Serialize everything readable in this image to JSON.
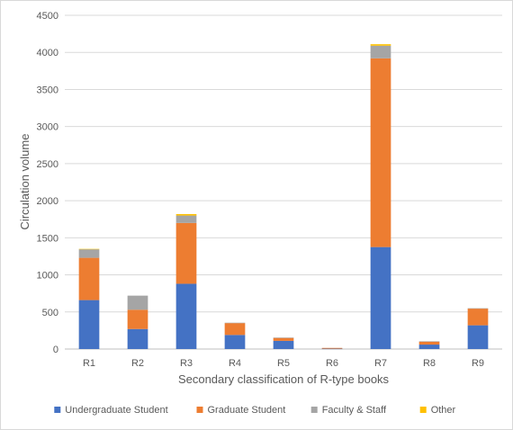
{
  "chart_data": {
    "type": "bar",
    "stacked": true,
    "title": "",
    "xlabel": "Secondary classification of R-type books",
    "ylabel": "Circulation volume",
    "ylim": [
      0,
      4500
    ],
    "yticks": [
      0,
      500,
      1000,
      1500,
      2000,
      2500,
      3000,
      3500,
      4000,
      4500
    ],
    "grid": true,
    "legend_position": "bottom",
    "categories": [
      "R1",
      "R2",
      "R3",
      "R4",
      "R5",
      "R6",
      "R7",
      "R8",
      "R9"
    ],
    "series": [
      {
        "name": "Undergraduate Student",
        "color": "#4472c4",
        "values": [
          660,
          270,
          880,
          190,
          110,
          5,
          1375,
          60,
          320
        ]
      },
      {
        "name": "Graduate Student",
        "color": "#ed7d31",
        "values": [
          570,
          260,
          820,
          160,
          40,
          10,
          2545,
          40,
          225
        ]
      },
      {
        "name": "Faculty & Staff",
        "color": "#a5a5a5",
        "values": [
          115,
          190,
          100,
          5,
          5,
          0,
          170,
          5,
          5
        ]
      },
      {
        "name": "Other",
        "color": "#ffc000",
        "values": [
          5,
          0,
          20,
          0,
          0,
          0,
          20,
          0,
          0
        ]
      }
    ]
  }
}
